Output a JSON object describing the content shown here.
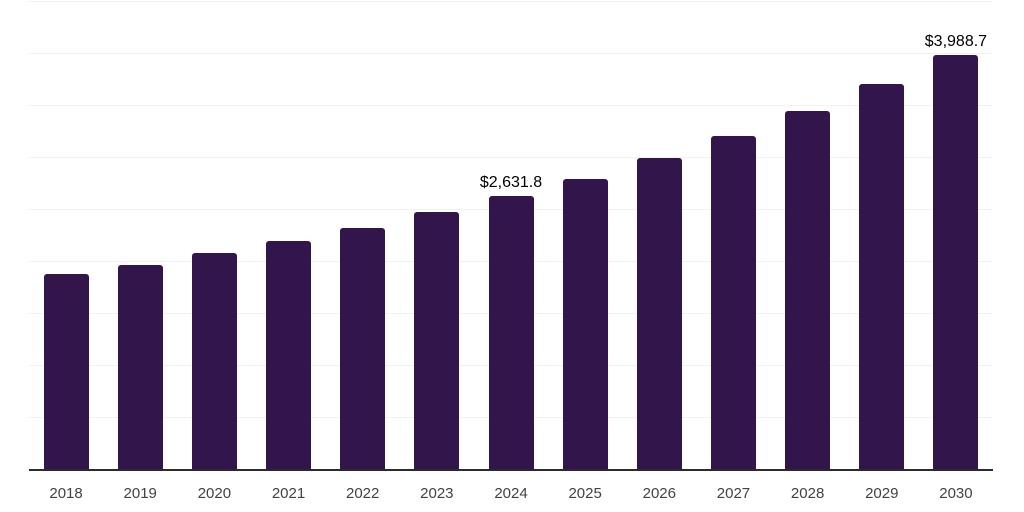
{
  "chart_data": {
    "type": "bar",
    "title": "",
    "xlabel": "",
    "ylabel": "",
    "categories": [
      "2018",
      "2019",
      "2020",
      "2021",
      "2022",
      "2023",
      "2024",
      "2025",
      "2026",
      "2027",
      "2028",
      "2029",
      "2030"
    ],
    "values": [
      1884.6,
      1971.0,
      2084.0,
      2202.0,
      2324.0,
      2478.0,
      2631.8,
      2798.0,
      2997.0,
      3212.0,
      3452.0,
      3709.0,
      3988.7
    ],
    "value_labels": [
      "",
      "",
      "",
      "",
      "",
      "",
      "$2,631.8",
      "",
      "",
      "",
      "",
      "",
      "$3,988.7"
    ],
    "ylim": [
      0,
      4500
    ],
    "gridline_step": 500,
    "grid": true,
    "legend": false,
    "y_tick_labels_visible": false,
    "colors": {
      "bar": "#32154A",
      "gridline": "#F2F2F2",
      "axis": "#2B2B2B",
      "tick_label": "#424242",
      "data_label": "#000000",
      "background": "#FFFFFF"
    }
  }
}
